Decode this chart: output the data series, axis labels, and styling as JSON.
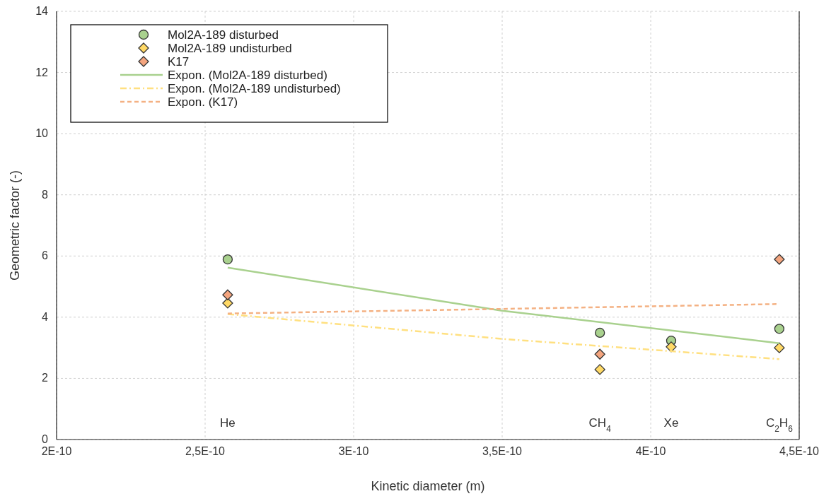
{
  "chart_data": {
    "type": "scatter",
    "xlabel": "Kinetic diameter (m)",
    "ylabel": "Geometric factor (-)",
    "xlim": [
      2e-10,
      4.5e-10
    ],
    "xticks": [
      {
        "value": 2e-10,
        "label": "2E-10"
      },
      {
        "value": 2.5e-10,
        "label": "2,5E-10"
      },
      {
        "value": 3e-10,
        "label": "3E-10"
      },
      {
        "value": 3.5e-10,
        "label": "3,5E-10"
      },
      {
        "value": 4e-10,
        "label": "4E-10"
      },
      {
        "value": 4.5e-10,
        "label": "4,5E-10"
      }
    ],
    "ylim": [
      0,
      14
    ],
    "yticks": [
      0,
      2,
      4,
      6,
      8,
      10,
      12,
      14
    ],
    "grid": true,
    "legend": "top left",
    "series": [
      {
        "name": "Mol2A-189 disturbed",
        "color": "#a9d18e",
        "marker": "circle",
        "x": [
          2.576e-10,
          3.829e-10,
          4.069e-10,
          4.433e-10
        ],
        "values": [
          5.89,
          3.49,
          3.23,
          3.62
        ]
      },
      {
        "name": "Mol2A-189 undisturbed",
        "color": "#ffd966",
        "marker": "diamond",
        "x": [
          2.576e-10,
          3.829e-10,
          4.069e-10,
          4.433e-10
        ],
        "values": [
          4.46,
          2.29,
          3.03,
          3.0
        ]
      },
      {
        "name": "K17",
        "color": "#f4a57f",
        "marker": "diamond",
        "x": [
          2.576e-10,
          3.829e-10,
          4.433e-10
        ],
        "values": [
          4.73,
          2.79,
          5.89
        ]
      },
      {
        "name": "Expon. (Mol2A-189 disturbed)",
        "type": "line",
        "color": "#a9d18e",
        "line_style": "solid",
        "marker": "none",
        "x": [
          2.576e-10,
          3.5e-10,
          4.433e-10
        ],
        "values": [
          5.62,
          4.21,
          3.15
        ]
      },
      {
        "name": "Expon. (Mol2A-189 undisturbed)",
        "type": "line",
        "color": "#ffe080",
        "line_style": "dashdot",
        "marker": "none",
        "x": [
          2.576e-10,
          3.5e-10,
          4.433e-10
        ],
        "values": [
          4.1,
          3.29,
          2.63
        ]
      },
      {
        "name": "Expon. (K17)",
        "type": "line",
        "color": "#f4b183",
        "line_style": "dashed",
        "marker": "none",
        "x": [
          2.576e-10,
          3.5e-10,
          4.433e-10
        ],
        "values": [
          4.12,
          4.27,
          4.43
        ]
      }
    ],
    "annotations": [
      "He",
      "CH$_{4}$",
      "Xe",
      "C$_{2}$H$_{6}$"
    ]
  }
}
